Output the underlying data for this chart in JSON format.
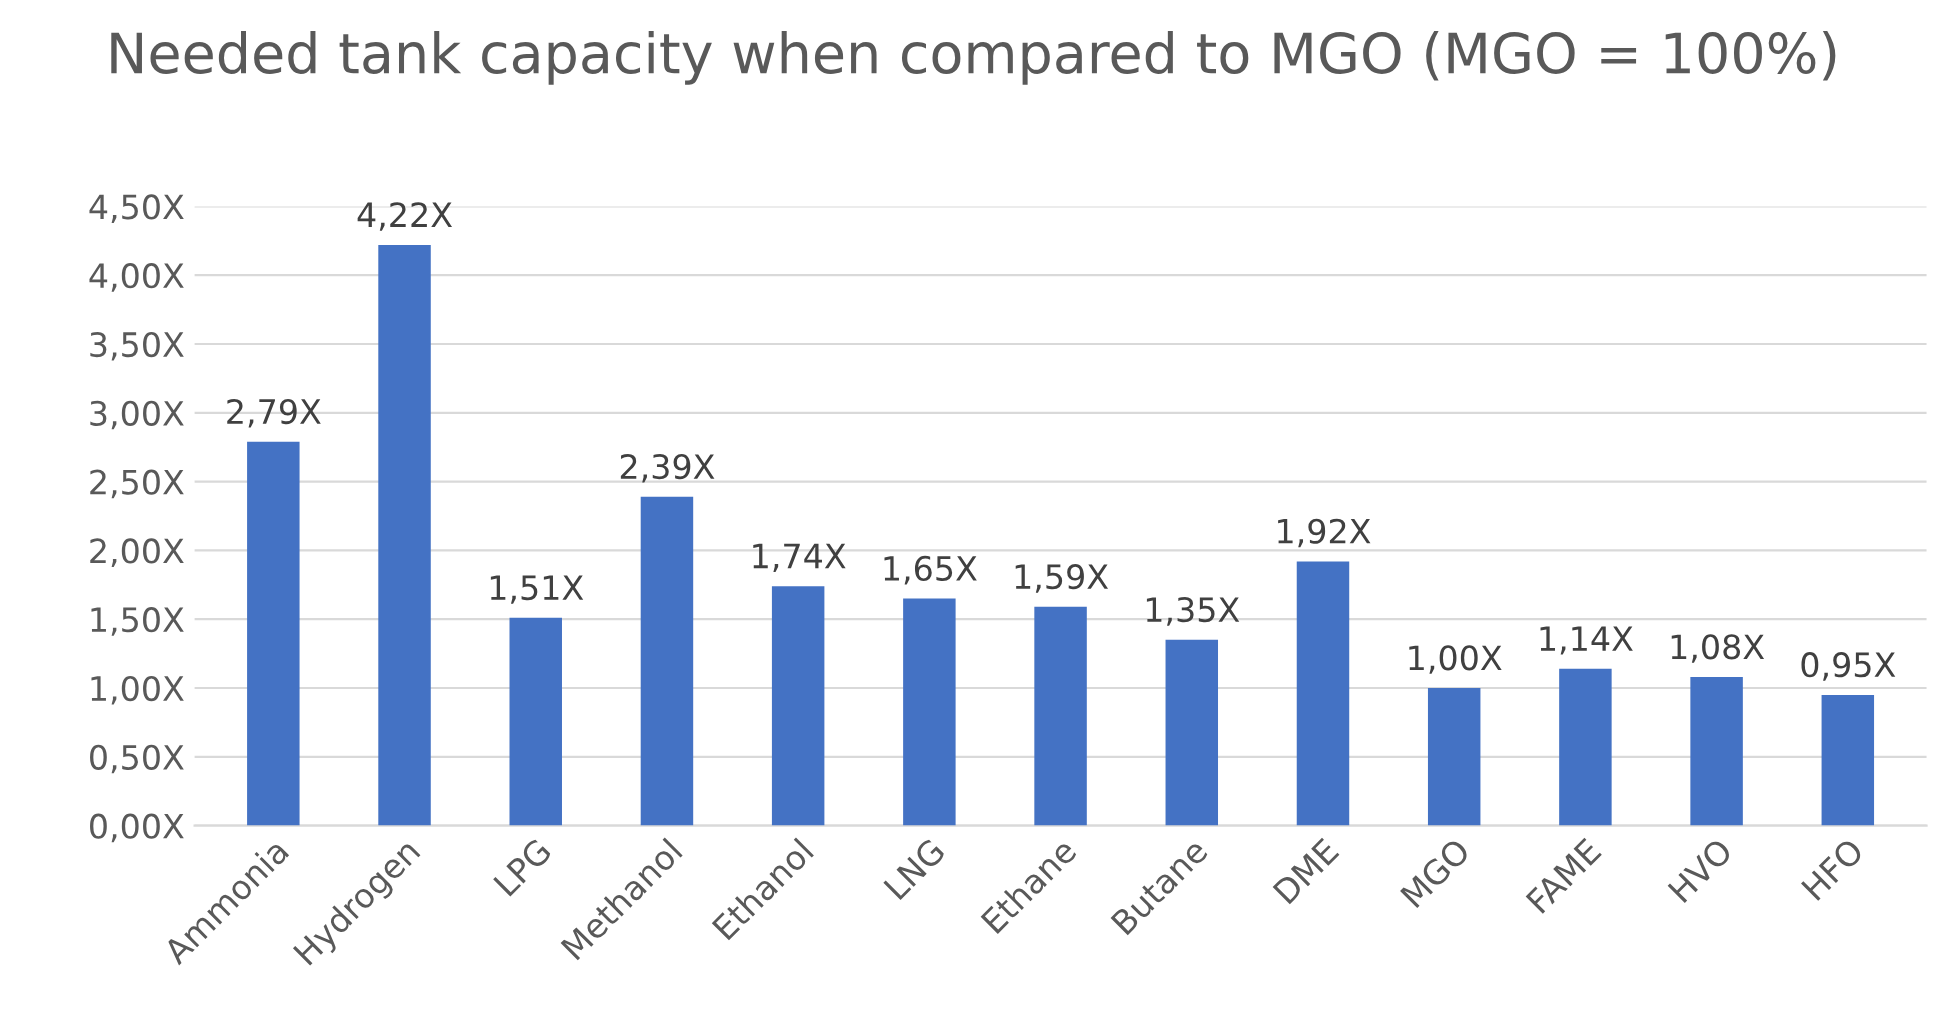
{
  "chart_data": {
    "type": "bar",
    "title": "Needed tank capacity when compared to MGO (MGO = 100%)",
    "categories": [
      "Ammonia",
      "Hydrogen",
      "LPG",
      "Methanol",
      "Ethanol",
      "LNG",
      "Ethane",
      "Butane",
      "DME",
      "MGO",
      "FAME",
      "HVO",
      "HFO"
    ],
    "values": [
      2.79,
      4.22,
      1.51,
      2.39,
      1.74,
      1.65,
      1.59,
      1.35,
      1.92,
      1.0,
      1.14,
      1.08,
      0.95
    ],
    "value_labels": [
      "2,79X",
      "4,22X",
      "1,51X",
      "2,39X",
      "1,74X",
      "1,65X",
      "1,59X",
      "1,35X",
      "1,92X",
      "1,00X",
      "1,14X",
      "1,08X",
      "0,95X"
    ],
    "color": "#4472c4",
    "ylim": [
      0,
      4.5
    ],
    "yticks": [
      {
        "value": 0,
        "label": "0,00X"
      },
      {
        "value": 0.5,
        "label": "0,50X"
      },
      {
        "value": 1,
        "label": "1,00X"
      },
      {
        "value": 1.5,
        "label": "1,50X"
      },
      {
        "value": 2,
        "label": "2,00X"
      },
      {
        "value": 2.5,
        "label": "2,50X"
      },
      {
        "value": 3,
        "label": "3,00X"
      },
      {
        "value": 3.5,
        "label": "3,50X"
      },
      {
        "value": 4,
        "label": "4,00X"
      },
      {
        "value": 4.5,
        "label": "4,50X"
      }
    ],
    "grid": "y",
    "legend": false
  }
}
